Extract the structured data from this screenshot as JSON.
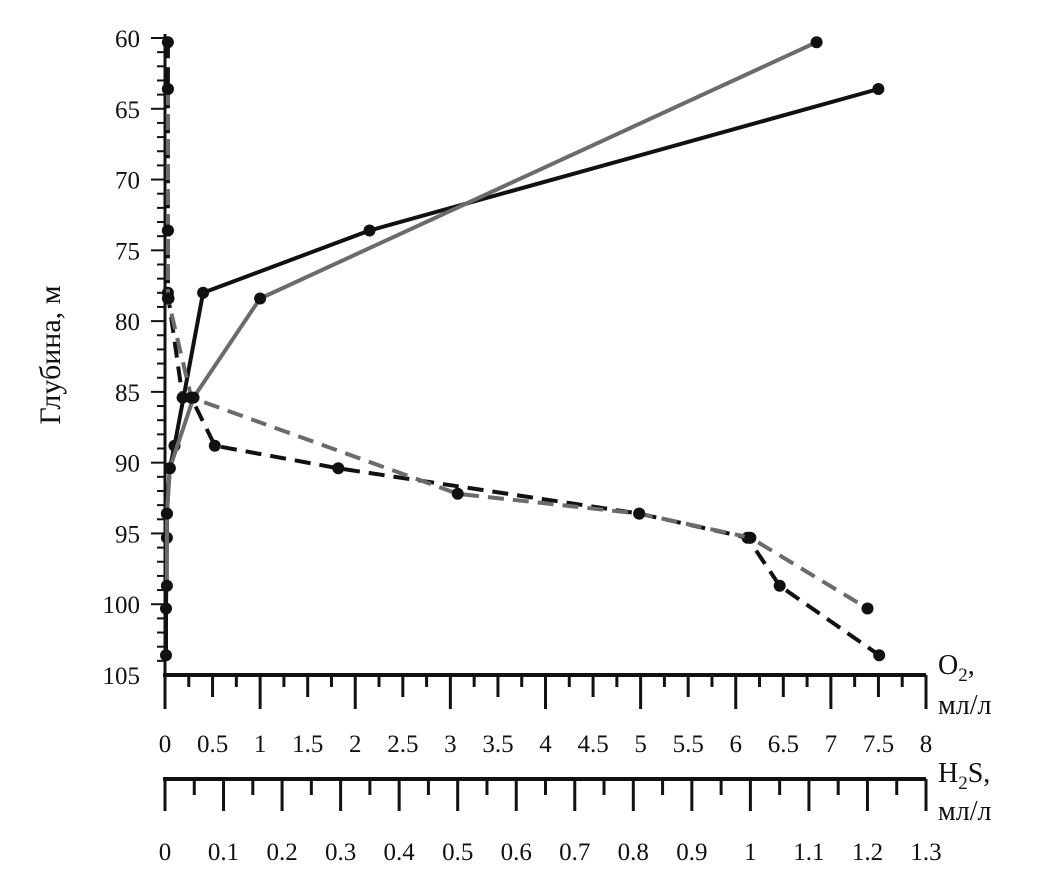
{
  "chart_data": {
    "type": "line",
    "ylabel": "Глубина, м",
    "y_ticks": [
      60,
      65,
      70,
      75,
      80,
      85,
      90,
      95,
      100,
      105
    ],
    "ylim": [
      60,
      105
    ],
    "y_inverted": true,
    "o2_axis": {
      "label": "O",
      "label_sub": "2",
      "label_suffix": ",",
      "unit": "мл/л",
      "xlim": [
        0,
        8
      ],
      "ticks": [
        "0",
        "0.5",
        "1",
        "1.5",
        "2",
        "2.5",
        "3",
        "3.5",
        "4",
        "4.5",
        "5",
        "5.5",
        "6",
        "6.5",
        "7",
        "7.5",
        "8"
      ]
    },
    "h2s_axis": {
      "label": "H",
      "label_sub": "2",
      "label_suffix": "S,",
      "unit": "мл/л",
      "xlim": [
        0,
        1.3
      ],
      "ticks": [
        "0",
        "0.1",
        "0.2",
        "0.3",
        "0.4",
        "0.5",
        "0.6",
        "0.7",
        "0.8",
        "0.9",
        "1",
        "1.1",
        "1.2",
        "1.3"
      ]
    },
    "series": [
      {
        "axis": "o2",
        "style": "solid",
        "color": "#111111",
        "points": [
          [
            7.5,
            63.6
          ],
          [
            2.15,
            73.6
          ],
          [
            0.4,
            78
          ],
          [
            0.1,
            88.8
          ],
          [
            0.05,
            90.4
          ],
          [
            0.02,
            93.6
          ],
          [
            0.02,
            95.3
          ],
          [
            0.01,
            100.3
          ],
          [
            0.01,
            103.6
          ]
        ]
      },
      {
        "axis": "o2",
        "style": "solid",
        "color": "#6b6b6b",
        "points": [
          [
            6.85,
            60.3
          ],
          [
            1,
            78.4
          ],
          [
            0.3,
            85.4
          ],
          [
            0.05,
            90.4
          ],
          [
            0.02,
            93.6
          ],
          [
            0.02,
            98.7
          ]
        ]
      },
      {
        "axis": "h2s",
        "style": "dashed",
        "color": "#111111",
        "points": [
          [
            0.005,
            60.3
          ],
          [
            0.005,
            63.6
          ],
          [
            0.005,
            73.6
          ],
          [
            0.005,
            78
          ],
          [
            0.006,
            78.4
          ],
          [
            0.03,
            85.4
          ],
          [
            0.045,
            85.4
          ],
          [
            0.085,
            88.8
          ],
          [
            0.296,
            90.4
          ],
          [
            0.81,
            93.6
          ],
          [
            0.995,
            95.3
          ],
          [
            1.05,
            98.7
          ],
          [
            1.22,
            103.6
          ]
        ]
      },
      {
        "axis": "h2s",
        "style": "dashed",
        "color": "#6b6b6b",
        "points": [
          [
            0.005,
            63.6
          ],
          [
            0.005,
            73.6
          ],
          [
            0.005,
            78.4
          ],
          [
            0.045,
            85.4
          ],
          [
            0.5,
            92.2
          ],
          [
            0.81,
            93.6
          ],
          [
            1.0,
            95.3
          ],
          [
            1.2,
            100.3
          ]
        ]
      }
    ]
  }
}
